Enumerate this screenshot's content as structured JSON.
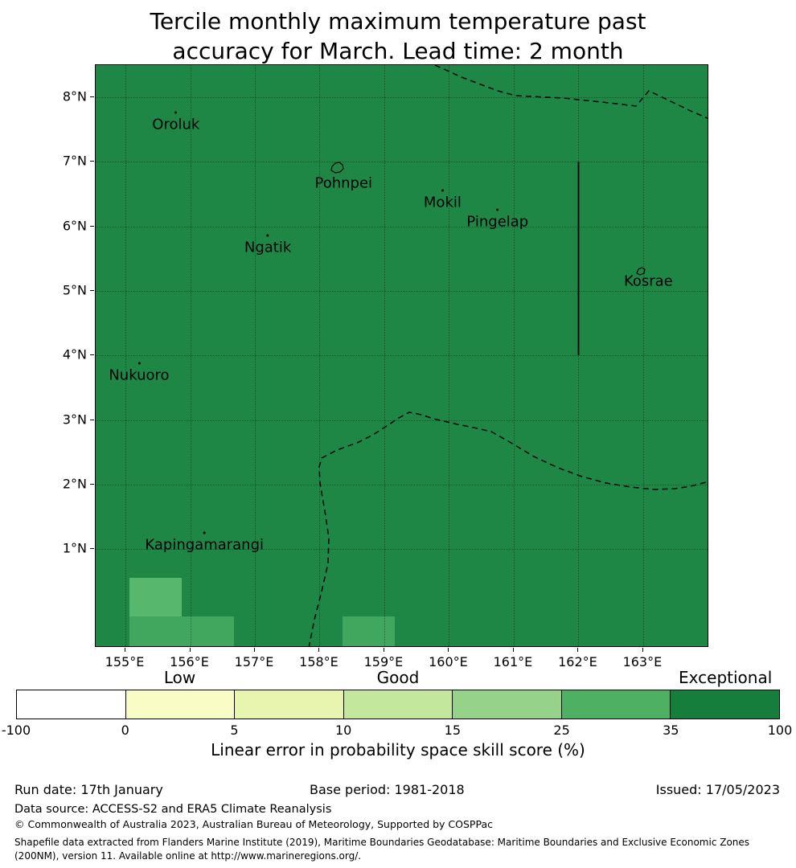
{
  "title": {
    "line1": "Tercile monthly maximum temperature past",
    "line2": "accuracy for March. Lead time: 2 month"
  },
  "colors": {
    "map_fill": "#1f8745",
    "boundary": "#000000"
  },
  "map": {
    "extent": {
      "lon_min": 154.54,
      "lon_max": 164.02,
      "lat_min": -0.53,
      "lat_max": 8.5
    },
    "x_ticks": [
      {
        "lon": 155,
        "label": "155°E"
      },
      {
        "lon": 156,
        "label": "156°E"
      },
      {
        "lon": 157,
        "label": "157°E"
      },
      {
        "lon": 158,
        "label": "158°E"
      },
      {
        "lon": 159,
        "label": "159°E"
      },
      {
        "lon": 160,
        "label": "160°E"
      },
      {
        "lon": 161,
        "label": "161°E"
      },
      {
        "lon": 162,
        "label": "162°E"
      },
      {
        "lon": 163,
        "label": "163°E"
      }
    ],
    "y_ticks": [
      {
        "lat": 8,
        "label": "8°N"
      },
      {
        "lat": 7,
        "label": "7°N"
      },
      {
        "lat": 6,
        "label": "6°N"
      },
      {
        "lat": 5,
        "label": "5°N"
      },
      {
        "lat": 4,
        "label": "4°N"
      },
      {
        "lat": 3,
        "label": "3°N"
      },
      {
        "lat": 2,
        "label": "2°N"
      },
      {
        "lat": 1,
        "label": "1°N"
      }
    ],
    "places": [
      {
        "name": "Oroluk",
        "lon": 155.78,
        "lat": 7.58,
        "marker": "dot"
      },
      {
        "name": "Pohnpei",
        "lon": 158.37,
        "lat": 6.67,
        "marker": "island"
      },
      {
        "name": "Mokil",
        "lon": 159.9,
        "lat": 6.37,
        "marker": "dot"
      },
      {
        "name": "Pingelap",
        "lon": 160.75,
        "lat": 6.07,
        "marker": "dot"
      },
      {
        "name": "Ngatik",
        "lon": 157.2,
        "lat": 5.67,
        "marker": "dot"
      },
      {
        "name": "Kosrae",
        "lon": 163.08,
        "lat": 5.15,
        "marker": "island"
      },
      {
        "name": "Nukuoro",
        "lon": 155.21,
        "lat": 3.69,
        "marker": "dot"
      },
      {
        "name": "Kapingamarangi",
        "lon": 156.22,
        "lat": 1.07,
        "marker": "dot"
      }
    ],
    "patches": [
      {
        "lon_w": 155.06,
        "lon_e": 155.87,
        "lat_s": -0.04,
        "lat_n": 0.55,
        "color": "#56b76d"
      },
      {
        "lon_w": 155.06,
        "lon_e": 156.68,
        "lat_s": -0.53,
        "lat_n": -0.04,
        "color": "#41a75e"
      },
      {
        "lon_w": 158.35,
        "lon_e": 159.16,
        "lat_s": -0.53,
        "lat_n": -0.04,
        "color": "#41a75e"
      }
    ]
  },
  "colorbar": {
    "category_labels": [
      {
        "text": "Low",
        "segment": 1
      },
      {
        "text": "Good",
        "segment": 3
      },
      {
        "text": "Exceptional",
        "segment": 6
      }
    ],
    "segments": [
      "#ffffff",
      "#f9fcc4",
      "#e7f5ae",
      "#c3e79d",
      "#97d28a",
      "#4db063",
      "#157e3d"
    ],
    "ticks": [
      "-100",
      "0",
      "5",
      "10",
      "15",
      "25",
      "35",
      "100"
    ],
    "caption": "Linear error in probability space skill score (%)"
  },
  "footer": {
    "run_date": "Run date: 17th January",
    "base_period": "Base period: 1981-2018",
    "issued": "Issued: 17/05/2023",
    "data_source": "Data source: ACCESS-S2 and ERA5 Climate Reanalysis",
    "copyright": "© Commonwealth of Australia 2023, Australian Bureau of Meteorology, Supported by COSPPac",
    "shapefile_line1": "Shapefile data extracted from Flanders Marine Institute (2019), Maritime Boundaries Geodatabase: Maritime Boundaries and Exclusive Economic Zones",
    "shapefile_line2": "(200NM), version 11. Available online at http://www.marineregions.org/."
  }
}
